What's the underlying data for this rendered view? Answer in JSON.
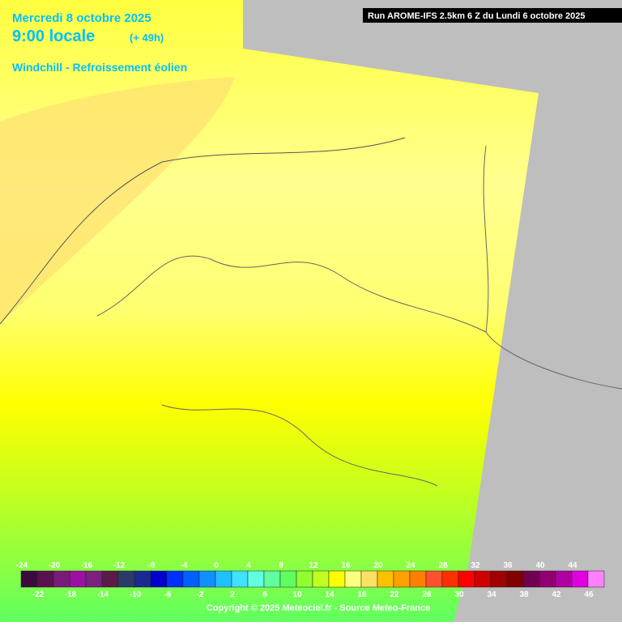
{
  "header": {
    "date": "Mercredi 8 octobre 2025",
    "time": "9:00 locale",
    "lead": "(+ 49h)",
    "parameter": "Windchill - Refroissement éolien",
    "run": "Run AROME-IFS 2.5km 6 Z du Lundi 6 octobre 2025"
  },
  "legend": {
    "steps": [
      {
        "value": -24,
        "color": "#3c0a3c"
      },
      {
        "value": -22,
        "color": "#5a1050"
      },
      {
        "value": -20,
        "color": "#7a1a7a"
      },
      {
        "value": -18,
        "color": "#9a10a0"
      },
      {
        "value": -16,
        "color": "#7a2080"
      },
      {
        "value": -14,
        "color": "#5a1a4a"
      },
      {
        "value": -12,
        "color": "#2a3a6a"
      },
      {
        "value": -10,
        "color": "#1a2a90"
      },
      {
        "value": -8,
        "color": "#0000d0"
      },
      {
        "value": -6,
        "color": "#0030ff"
      },
      {
        "value": -4,
        "color": "#0060ff"
      },
      {
        "value": -2,
        "color": "#1090ff"
      },
      {
        "value": 0,
        "color": "#20c0ff"
      },
      {
        "value": 2,
        "color": "#40e0ff"
      },
      {
        "value": 4,
        "color": "#60ffe0"
      },
      {
        "value": 6,
        "color": "#60ffa0"
      },
      {
        "value": 8,
        "color": "#60ff60"
      },
      {
        "value": 10,
        "color": "#90ff30"
      },
      {
        "value": 12,
        "color": "#c0ff20"
      },
      {
        "value": 14,
        "color": "#ffff00"
      },
      {
        "value": 16,
        "color": "#ffff80"
      },
      {
        "value": 18,
        "color": "#ffe060"
      },
      {
        "value": 20,
        "color": "#ffc000"
      },
      {
        "value": 22,
        "color": "#ffa000"
      },
      {
        "value": 24,
        "color": "#ff8000"
      },
      {
        "value": 26,
        "color": "#ff5030"
      },
      {
        "value": 28,
        "color": "#ff3000"
      },
      {
        "value": 30,
        "color": "#ff0000"
      },
      {
        "value": 32,
        "color": "#d00000"
      },
      {
        "value": 34,
        "color": "#a00000"
      },
      {
        "value": 36,
        "color": "#800000"
      },
      {
        "value": 38,
        "color": "#700050"
      },
      {
        "value": 40,
        "color": "#900070"
      },
      {
        "value": 42,
        "color": "#b000a0"
      },
      {
        "value": 44,
        "color": "#e000e0"
      },
      {
        "value": 46,
        "color": "#ff80ff"
      }
    ]
  },
  "footer": {
    "copyright": "Copyright © 2025 Meteociel.fr - Source Meteo-France"
  }
}
